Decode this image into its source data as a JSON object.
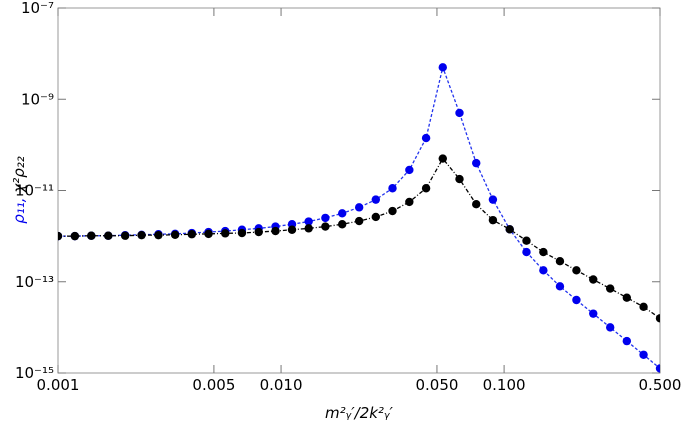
{
  "chart_data": {
    "type": "scatter-line",
    "log_x": true,
    "log_y": true,
    "frame": true,
    "xlabel": "m²ᵧ′/2k²ᵧ′",
    "ylabel": [
      "ρ₁₁,",
      " χ²ρ₂₂"
    ],
    "xlim": [
      0.001,
      0.5
    ],
    "xticks": [
      0.001,
      0.005,
      {
        "value": 0.01,
        "label": "0.010"
      },
      {
        "value": 0.05,
        "label": "0.050"
      },
      {
        "value": 0.1,
        "label": "0.100"
      },
      {
        "value": 0.5,
        "label": "0.500"
      }
    ],
    "ylim": [
      1e-15,
      1e-07
    ],
    "yticks": [
      {
        "value": 1e-15,
        "label": "10⁻¹⁵"
      },
      {
        "value": 1e-13,
        "label": "10⁻¹³"
      },
      {
        "value": 1e-11,
        "label": "10⁻¹¹"
      },
      {
        "value": 1e-09,
        "label": "10⁻⁹"
      },
      {
        "value": 1e-07,
        "label": "10⁻⁷"
      }
    ],
    "x": [
      0.001,
      0.00119,
      0.00141,
      0.00168,
      0.002,
      0.00237,
      0.00282,
      0.00335,
      0.00398,
      0.00473,
      0.00562,
      0.00668,
      0.00794,
      0.00944,
      0.0112,
      0.0133,
      0.0158,
      0.0188,
      0.0224,
      0.0266,
      0.0316,
      0.0376,
      0.0447,
      0.0531,
      0.0631,
      0.075,
      0.0891,
      0.106,
      0.126,
      0.15,
      0.178,
      0.211,
      0.251,
      0.299,
      0.355,
      0.422,
      0.5
    ],
    "series": [
      {
        "color": "#0000ee",
        "line_color": "#2233ee",
        "values": [
          1e-12,
          1e-12,
          1.02e-12,
          1.02e-12,
          1.05e-12,
          1.07e-12,
          1.1e-12,
          1.12e-12,
          1.17e-12,
          1.23e-12,
          1.29e-12,
          1.38e-12,
          1.48e-12,
          1.62e-12,
          1.82e-12,
          2.09e-12,
          2.51e-12,
          3.16e-12,
          4.27e-12,
          6.31e-12,
          1.12e-11,
          2.82e-11,
          1.41e-10,
          5.01e-09,
          5.01e-10,
          3.98e-11,
          6.31e-12,
          1.41e-12,
          4.47e-13,
          1.78e-13,
          7.94e-14,
          3.98e-14,
          2e-14,
          1e-14,
          5e-15,
          2.51e-15,
          1.26e-15
        ]
      },
      {
        "color": "#000000",
        "line_color": "#000000",
        "values": [
          1e-12,
          1e-12,
          1.02e-12,
          1.02e-12,
          1.02e-12,
          1.05e-12,
          1.05e-12,
          1.07e-12,
          1.1e-12,
          1.12e-12,
          1.15e-12,
          1.17e-12,
          1.23e-12,
          1.29e-12,
          1.38e-12,
          1.48e-12,
          1.62e-12,
          1.82e-12,
          2.14e-12,
          2.63e-12,
          3.55e-12,
          5.62e-12,
          1.12e-11,
          5.01e-11,
          1.78e-11,
          5.01e-12,
          2.24e-12,
          1.41e-12,
          7.94e-13,
          4.47e-13,
          2.82e-13,
          1.78e-13,
          1.12e-13,
          7.08e-14,
          4.47e-14,
          2.82e-14,
          1.58e-14
        ]
      }
    ]
  }
}
